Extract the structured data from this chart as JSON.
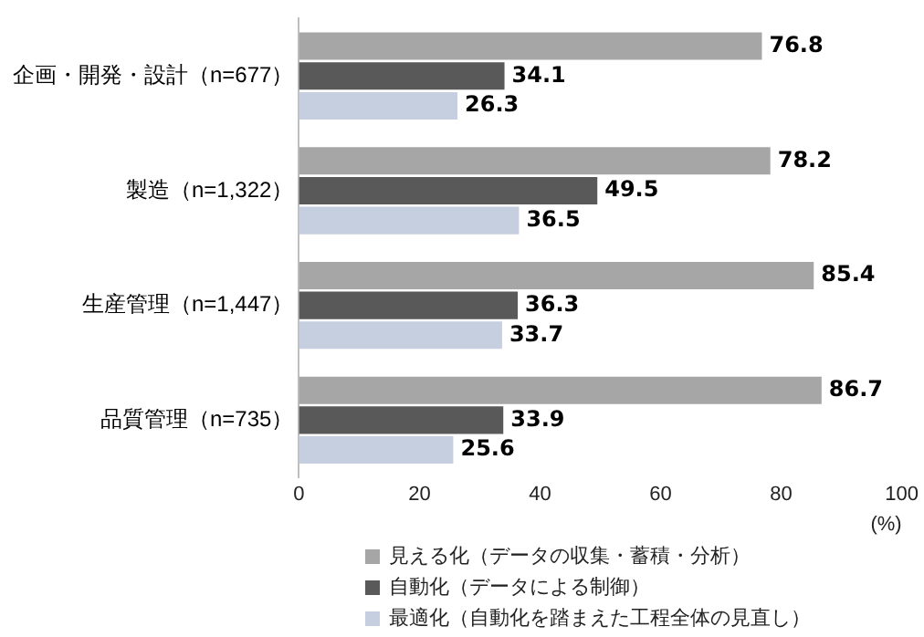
{
  "chart_data": {
    "type": "bar",
    "orientation": "horizontal",
    "categories": [
      "企画・開発・設計（n=677）",
      "製造（n=1,322）",
      "生産管理（n=1,447）",
      "品質管理（n=735）"
    ],
    "series": [
      {
        "name": "見える化（データの収集・蓄積・分析）",
        "color": "#a6a6a6",
        "values": [
          76.8,
          78.2,
          85.4,
          86.7
        ]
      },
      {
        "name": "自動化（データによる制御）",
        "color": "#595959",
        "values": [
          34.1,
          49.5,
          36.3,
          33.9
        ]
      },
      {
        "name": "最適化（自動化を踏まえた工程全体の見直し）",
        "color": "#c5cfdf",
        "values": [
          26.3,
          36.5,
          33.7,
          25.6
        ]
      }
    ],
    "xlim": [
      0,
      100
    ],
    "xticks": [
      0,
      20,
      40,
      60,
      80,
      100
    ],
    "xlabel": "(%)",
    "data_labels": true,
    "grid": false,
    "legend": "bottom"
  }
}
